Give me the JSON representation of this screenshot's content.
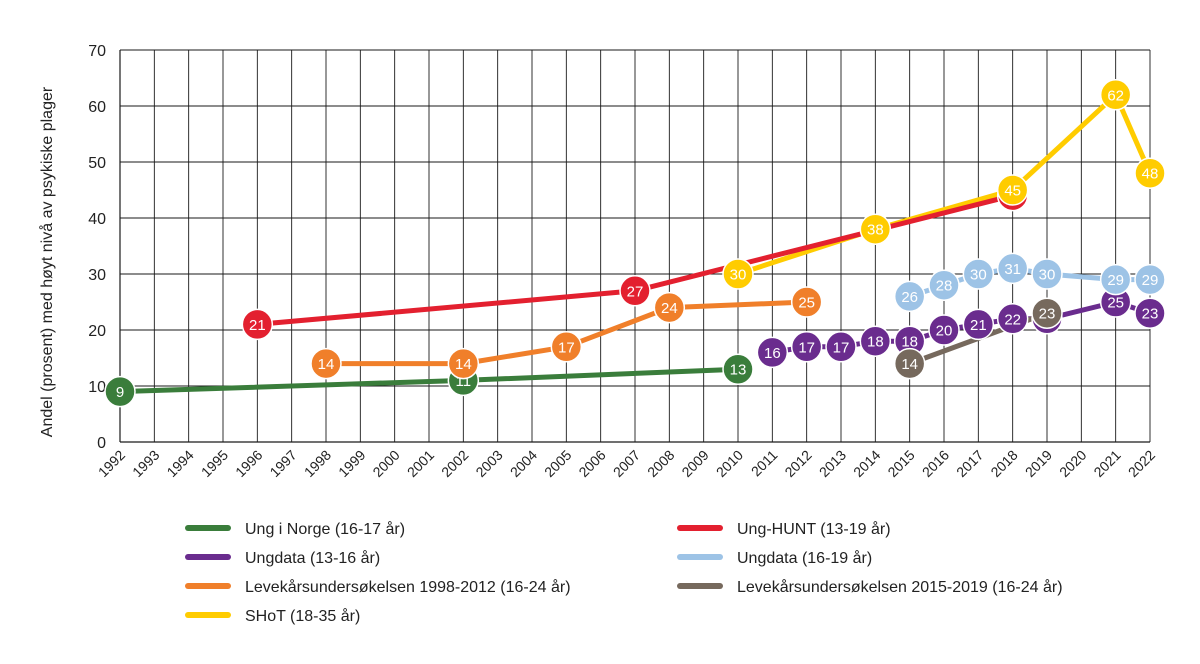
{
  "chart_data": {
    "type": "line",
    "title": "",
    "xlabel": "",
    "ylabel": "Andel (prosent) med høyt nivå av psykiske plager",
    "xlim": [
      1992,
      2022
    ],
    "ylim": [
      0,
      70
    ],
    "yticks": [
      0,
      10,
      20,
      30,
      40,
      50,
      60,
      70
    ],
    "xticks": [
      "1992",
      "1993",
      "1994",
      "1995",
      "1996",
      "1997",
      "1998",
      "1999",
      "2000",
      "2001",
      "2002",
      "2003",
      "2004",
      "2005",
      "2006",
      "2007",
      "2008",
      "2009",
      "2010",
      "2011",
      "2012",
      "2013",
      "2014",
      "2015",
      "2016",
      "2017",
      "2018",
      "2019",
      "2020",
      "2021",
      "2022"
    ],
    "grid": true,
    "legend_position": "bottom",
    "series": [
      {
        "name": "Ung i Norge (16-17 år)",
        "color": "#3a7d3b",
        "points": [
          [
            1992,
            9
          ],
          [
            2002,
            11
          ],
          [
            2010,
            13
          ]
        ]
      },
      {
        "name": "Ungdata (13-16 år)",
        "color": "#6a2c8e",
        "points": [
          [
            2011,
            16
          ],
          [
            2012,
            17
          ],
          [
            2013,
            17
          ],
          [
            2014,
            18
          ],
          [
            2015,
            18
          ],
          [
            2016,
            20
          ],
          [
            2017,
            21
          ],
          [
            2018,
            22
          ],
          [
            2019,
            22
          ],
          [
            2021,
            25
          ],
          [
            2022,
            23
          ]
        ]
      },
      {
        "name": "Levekårsundersøkelsen 1998-2012 (16-24 år)",
        "color": "#f07f2a",
        "points": [
          [
            1998,
            14
          ],
          [
            2002,
            14
          ],
          [
            2005,
            17
          ],
          [
            2008,
            24
          ],
          [
            2012,
            25
          ]
        ]
      },
      {
        "name": "SHoT (18-35 år)",
        "color": "#ffcc00",
        "points": [
          [
            2010,
            30
          ],
          [
            2014,
            38
          ],
          [
            2018,
            45
          ],
          [
            2021,
            62
          ],
          [
            2022,
            48
          ]
        ]
      },
      {
        "name": "Ung-HUNT (13-19 år)",
        "color": "#e3202f",
        "points": [
          [
            1996,
            21
          ],
          [
            2007,
            27
          ],
          [
            2018,
            44
          ]
        ]
      },
      {
        "name": "Ungdata (16-19 år)",
        "color": "#9dc3e6",
        "points": [
          [
            2015,
            26
          ],
          [
            2016,
            28
          ],
          [
            2017,
            30
          ],
          [
            2018,
            31
          ],
          [
            2019,
            30
          ],
          [
            2021,
            29
          ],
          [
            2022,
            29
          ]
        ]
      },
      {
        "name": "Levekårsundersøkelsen 2015-2019 (16-24 år)",
        "color": "#76695d",
        "points": [
          [
            2015,
            14
          ],
          [
            2019,
            23
          ]
        ]
      }
    ],
    "point_labels": [
      {
        "series": 0,
        "x": 1992,
        "y": 9,
        "text": "9"
      },
      {
        "series": 0,
        "x": 2002,
        "y": 11,
        "text": "11"
      },
      {
        "series": 0,
        "x": 2010,
        "y": 13,
        "text": "13"
      },
      {
        "series": 4,
        "x": 1996,
        "y": 21,
        "text": "21"
      },
      {
        "series": 4,
        "x": 2007,
        "y": 27,
        "text": "27"
      },
      {
        "series": 4,
        "x": 2018,
        "y": 44,
        "text": ""
      },
      {
        "series": 2,
        "x": 1998,
        "y": 14,
        "text": "14"
      },
      {
        "series": 2,
        "x": 2002,
        "y": 14,
        "text": "14"
      },
      {
        "series": 2,
        "x": 2005,
        "y": 17,
        "text": "17"
      },
      {
        "series": 2,
        "x": 2008,
        "y": 24,
        "text": "24"
      },
      {
        "series": 2,
        "x": 2012,
        "y": 25,
        "text": "25"
      },
      {
        "series": 1,
        "x": 2011,
        "y": 16,
        "text": "16"
      },
      {
        "series": 1,
        "x": 2012,
        "y": 17,
        "text": "17"
      },
      {
        "series": 1,
        "x": 2013,
        "y": 17,
        "text": "17"
      },
      {
        "series": 1,
        "x": 2014,
        "y": 18,
        "text": "18"
      },
      {
        "series": 1,
        "x": 2015,
        "y": 18,
        "text": "18"
      },
      {
        "series": 1,
        "x": 2016,
        "y": 20,
        "text": "20"
      },
      {
        "series": 1,
        "x": 2017,
        "y": 21,
        "text": "21"
      },
      {
        "series": 1,
        "x": 2018,
        "y": 22,
        "text": "22"
      },
      {
        "series": 1,
        "x": 2019,
        "y": 22,
        "text": ""
      },
      {
        "series": 1,
        "x": 2021,
        "y": 25,
        "text": "25"
      },
      {
        "series": 1,
        "x": 2022,
        "y": 23,
        "text": "23"
      },
      {
        "series": 6,
        "x": 2015,
        "y": 14,
        "text": "14"
      },
      {
        "series": 6,
        "x": 2019,
        "y": 23,
        "text": "23"
      },
      {
        "series": 5,
        "x": 2015,
        "y": 26,
        "text": "26"
      },
      {
        "series": 5,
        "x": 2016,
        "y": 28,
        "text": "28"
      },
      {
        "series": 5,
        "x": 2017,
        "y": 30,
        "text": "30"
      },
      {
        "series": 5,
        "x": 2018,
        "y": 31,
        "text": "31"
      },
      {
        "series": 5,
        "x": 2019,
        "y": 30,
        "text": "30"
      },
      {
        "series": 5,
        "x": 2021,
        "y": 29,
        "text": "29"
      },
      {
        "series": 5,
        "x": 2022,
        "y": 29,
        "text": "29"
      },
      {
        "series": 3,
        "x": 2010,
        "y": 30,
        "text": "30"
      },
      {
        "series": 3,
        "x": 2014,
        "y": 38,
        "text": "38"
      },
      {
        "series": 3,
        "x": 2018,
        "y": 45,
        "text": "45"
      },
      {
        "series": 3,
        "x": 2021,
        "y": 62,
        "text": "62"
      },
      {
        "series": 3,
        "x": 2022,
        "y": 48,
        "text": "48"
      }
    ],
    "legend_order": [
      0,
      4,
      1,
      5,
      2,
      6,
      3
    ]
  }
}
